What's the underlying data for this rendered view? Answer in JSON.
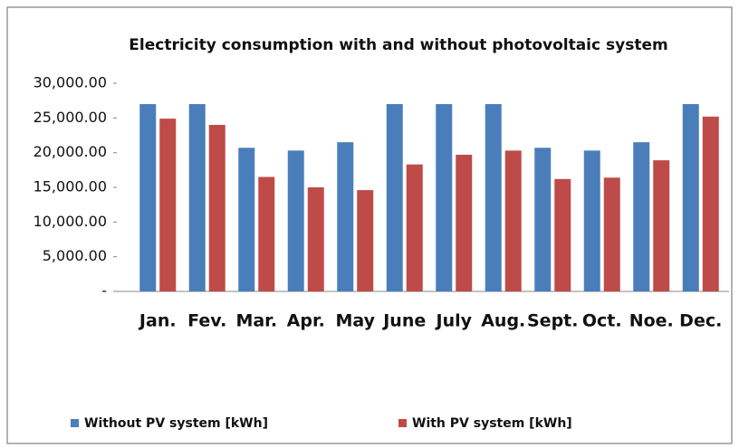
{
  "chart_data": {
    "type": "bar",
    "title": "Electricity consumption with and without photovoltaic system",
    "categories": [
      "Jan.",
      "Fev.",
      "Mar.",
      "Apr.",
      "May",
      "June",
      "July",
      "Aug.",
      "Sept.",
      "Oct.",
      "Noe.",
      "Dec."
    ],
    "series": [
      {
        "name": "Without PV system [kWh]",
        "color": "#4a7ebb",
        "values": [
          27000,
          27000,
          20700,
          20300,
          21500,
          27000,
          27000,
          27000,
          20700,
          20300,
          21500,
          27000
        ]
      },
      {
        "name": "With PV system [kWh]",
        "color": "#be4b48",
        "values": [
          24900,
          24000,
          16500,
          15000,
          14600,
          18300,
          19700,
          20300,
          16200,
          16400,
          18900,
          25200
        ]
      }
    ],
    "ylim": [
      0,
      30000
    ],
    "yticks": [
      {
        "value": 0,
        "label": "-"
      },
      {
        "value": 5000,
        "label": "5,000.00"
      },
      {
        "value": 10000,
        "label": "10,000.00"
      },
      {
        "value": 15000,
        "label": "15,000.00"
      },
      {
        "value": 20000,
        "label": "20,000.00"
      },
      {
        "value": 25000,
        "label": "25,000.00"
      },
      {
        "value": 30000,
        "label": "30,000.00"
      }
    ],
    "legend": "bottom"
  }
}
